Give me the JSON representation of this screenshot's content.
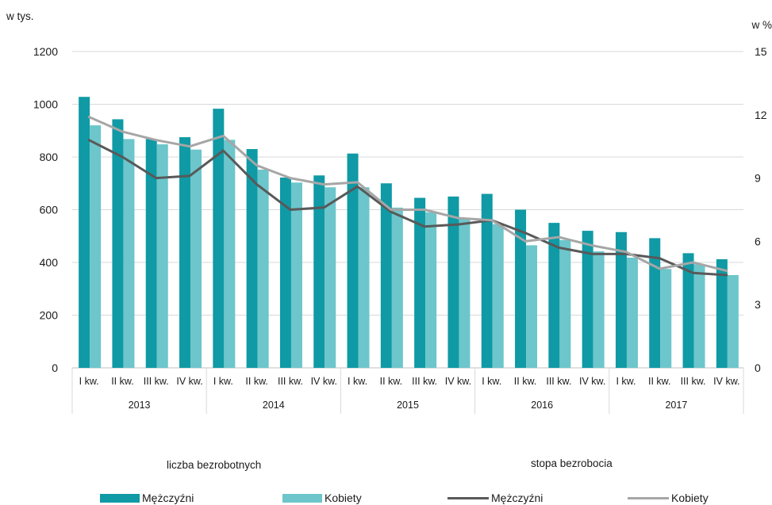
{
  "chart_data": {
    "type": "bar+line",
    "left_axis_label": "w tys.",
    "right_axis_label": "w %",
    "left_ylim": [
      0,
      1200
    ],
    "left_yticks": [
      "0",
      "200",
      "400",
      "600",
      "800",
      "1000",
      "1200"
    ],
    "right_ylim": [
      0,
      15
    ],
    "right_yticks": [
      "0",
      "3",
      "6",
      "9",
      "12",
      "15"
    ],
    "quarter_labels": [
      "I kw.",
      "II kw.",
      "III kw.",
      "IV kw."
    ],
    "years": [
      "2013",
      "2014",
      "2015",
      "2016",
      "2017"
    ],
    "group_titles": {
      "bars": "liczba bezrobotnych",
      "lines": "stopa bezrobocia"
    },
    "colors": {
      "men_bar": "#0f9aa5",
      "women_bar": "#6cc6cb",
      "men_line": "#595959",
      "women_line": "#a6a6a6"
    },
    "bar_series": [
      {
        "name": "Mężczyźni",
        "values": [
          1028,
          943,
          868,
          875,
          983,
          830,
          722,
          730,
          813,
          700,
          645,
          650,
          660,
          600,
          550,
          520,
          515,
          492,
          435,
          412
        ]
      },
      {
        "name": "Kobiety",
        "values": [
          920,
          868,
          848,
          828,
          865,
          752,
          703,
          685,
          685,
          608,
          590,
          565,
          545,
          465,
          485,
          442,
          418,
          375,
          393,
          352
        ]
      }
    ],
    "line_series": [
      {
        "name": "Mężczyźni",
        "values": [
          10.8,
          10.0,
          9.0,
          9.1,
          10.3,
          8.7,
          7.5,
          7.6,
          8.6,
          7.4,
          6.7,
          6.8,
          7.0,
          6.4,
          5.7,
          5.4,
          5.4,
          5.2,
          4.5,
          4.4
        ]
      },
      {
        "name": "Kobiety",
        "values": [
          11.9,
          11.2,
          10.8,
          10.5,
          11.0,
          9.6,
          9.0,
          8.7,
          8.8,
          7.5,
          7.5,
          7.1,
          7.0,
          6.0,
          6.2,
          5.8,
          5.5,
          4.7,
          5.0,
          4.6
        ]
      }
    ],
    "grid": true,
    "legend_position": "bottom"
  }
}
